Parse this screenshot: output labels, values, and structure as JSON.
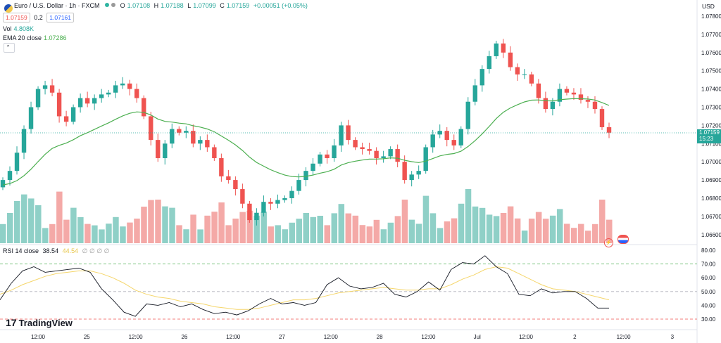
{
  "header": {
    "title": "Euro / U.S. Dollar · 1h · FXCM",
    "ohlc": {
      "o_label": "O",
      "o": "1.07108",
      "h_label": "H",
      "h": "1.07188",
      "l_label": "L",
      "l": "1.07099",
      "c_label": "C",
      "c": "1.07159",
      "change": "+0.00051 (+0.05%)"
    },
    "bid": "1.07159",
    "spread": "0.2",
    "ask": "1.07161",
    "vol_label": "Vol",
    "vol_value": "4.808K",
    "ema_label": "EMA 20 close",
    "ema_value": "1.07286",
    "rsi_label": "RSI 14 close",
    "rsi_value": "38.54",
    "rsi_ma_value": "44.54",
    "rsi_extra": "∅ ∅ ∅ ∅"
  },
  "price_axis": {
    "currency": "USD",
    "ticks": [
      "1.07800",
      "1.07700",
      "1.07600",
      "1.07500",
      "1.07400",
      "1.07300",
      "1.07200",
      "1.07100",
      "1.07000",
      "1.06900",
      "1.06800",
      "1.06700",
      "1.06600"
    ],
    "current_price": "1.07159",
    "countdown": "15:23"
  },
  "rsi_axis": {
    "ticks": [
      "80.00",
      "70.00",
      "60.00",
      "50.00",
      "40.00",
      "30.00"
    ]
  },
  "time_axis": {
    "ticks": [
      "12:00",
      "25",
      "12:00",
      "26",
      "12:00",
      "27",
      "12:00",
      "28",
      "12:00",
      "Jul",
      "12:00",
      "2",
      "12:00",
      "3"
    ]
  },
  "brand": {
    "name": "TradingView"
  },
  "colors": {
    "up": "#26a69a",
    "down": "#ef5350",
    "ema": "#4caf50",
    "rsi": "#131722",
    "rsi_ma": "#f5d66b",
    "up_vol": "#8fd0c7",
    "down_vol": "#f4a9a7"
  },
  "chart_data": [
    {
      "type": "candlestick",
      "title": "Euro / U.S. Dollar · 1h · FXCM",
      "ylim": [
        1.066,
        1.078
      ],
      "series_close": [
        1.069,
        1.0695,
        1.0705,
        1.0718,
        1.073,
        1.074,
        1.0742,
        1.0738,
        1.0725,
        1.0722,
        1.073,
        1.0735,
        1.0732,
        1.0735,
        1.0737,
        1.0738,
        1.0742,
        1.0743,
        1.074,
        1.0735,
        1.0725,
        1.0712,
        1.0702,
        1.071,
        1.0718,
        1.0716,
        1.0717,
        1.071,
        1.0712,
        1.0708,
        1.0702,
        1.0692,
        1.069,
        1.0685,
        1.0677,
        1.0668,
        1.0672,
        1.0678,
        1.0677,
        1.0679,
        1.068,
        1.0684,
        1.069,
        1.0695,
        1.0699,
        1.0704,
        1.0702,
        1.0709,
        1.072,
        1.0712,
        1.0708,
        1.0707,
        1.0706,
        1.0702,
        1.0703,
        1.0707,
        1.07,
        1.069,
        1.0693,
        1.0695,
        1.0708,
        1.0715,
        1.0717,
        1.0712,
        1.0709,
        1.0718,
        1.0733,
        1.0742,
        1.0751,
        1.0758,
        1.0765,
        1.076,
        1.0752,
        1.0748,
        1.0748,
        1.0743,
        1.0735,
        1.0729,
        1.0733,
        1.074,
        1.0738,
        1.0737,
        1.0734,
        1.0733,
        1.0729,
        1.0719,
        1.0716
      ],
      "ema_last": 1.07286
    },
    {
      "type": "line",
      "title": "RSI 14 close",
      "ylim": [
        25,
        80
      ],
      "reference_lines": [
        70,
        50,
        30
      ],
      "rsi": [
        44,
        56,
        65,
        68,
        64,
        65,
        66,
        67,
        64,
        52,
        44,
        35,
        32,
        41,
        40,
        42,
        39,
        41,
        37,
        34,
        35,
        33,
        36,
        41,
        45,
        41,
        42,
        40,
        42,
        55,
        60,
        54,
        52,
        53,
        56,
        48,
        46,
        50,
        57,
        51,
        66,
        71,
        70,
        76,
        68,
        63,
        48,
        47,
        52,
        49,
        50,
        50,
        45,
        38,
        38
      ],
      "rsi_ma": [
        48,
        51,
        55,
        58,
        61,
        63,
        64,
        65,
        65,
        63,
        60,
        56,
        51,
        48,
        46,
        45,
        43,
        42,
        41,
        39,
        38,
        37,
        37,
        38,
        40,
        42,
        44,
        44,
        45,
        47,
        49,
        50,
        51,
        52,
        53,
        52,
        51,
        51,
        52,
        52,
        55,
        59,
        62,
        66,
        68,
        67,
        63,
        59,
        55,
        52,
        51,
        50,
        48,
        46,
        44
      ]
    }
  ]
}
